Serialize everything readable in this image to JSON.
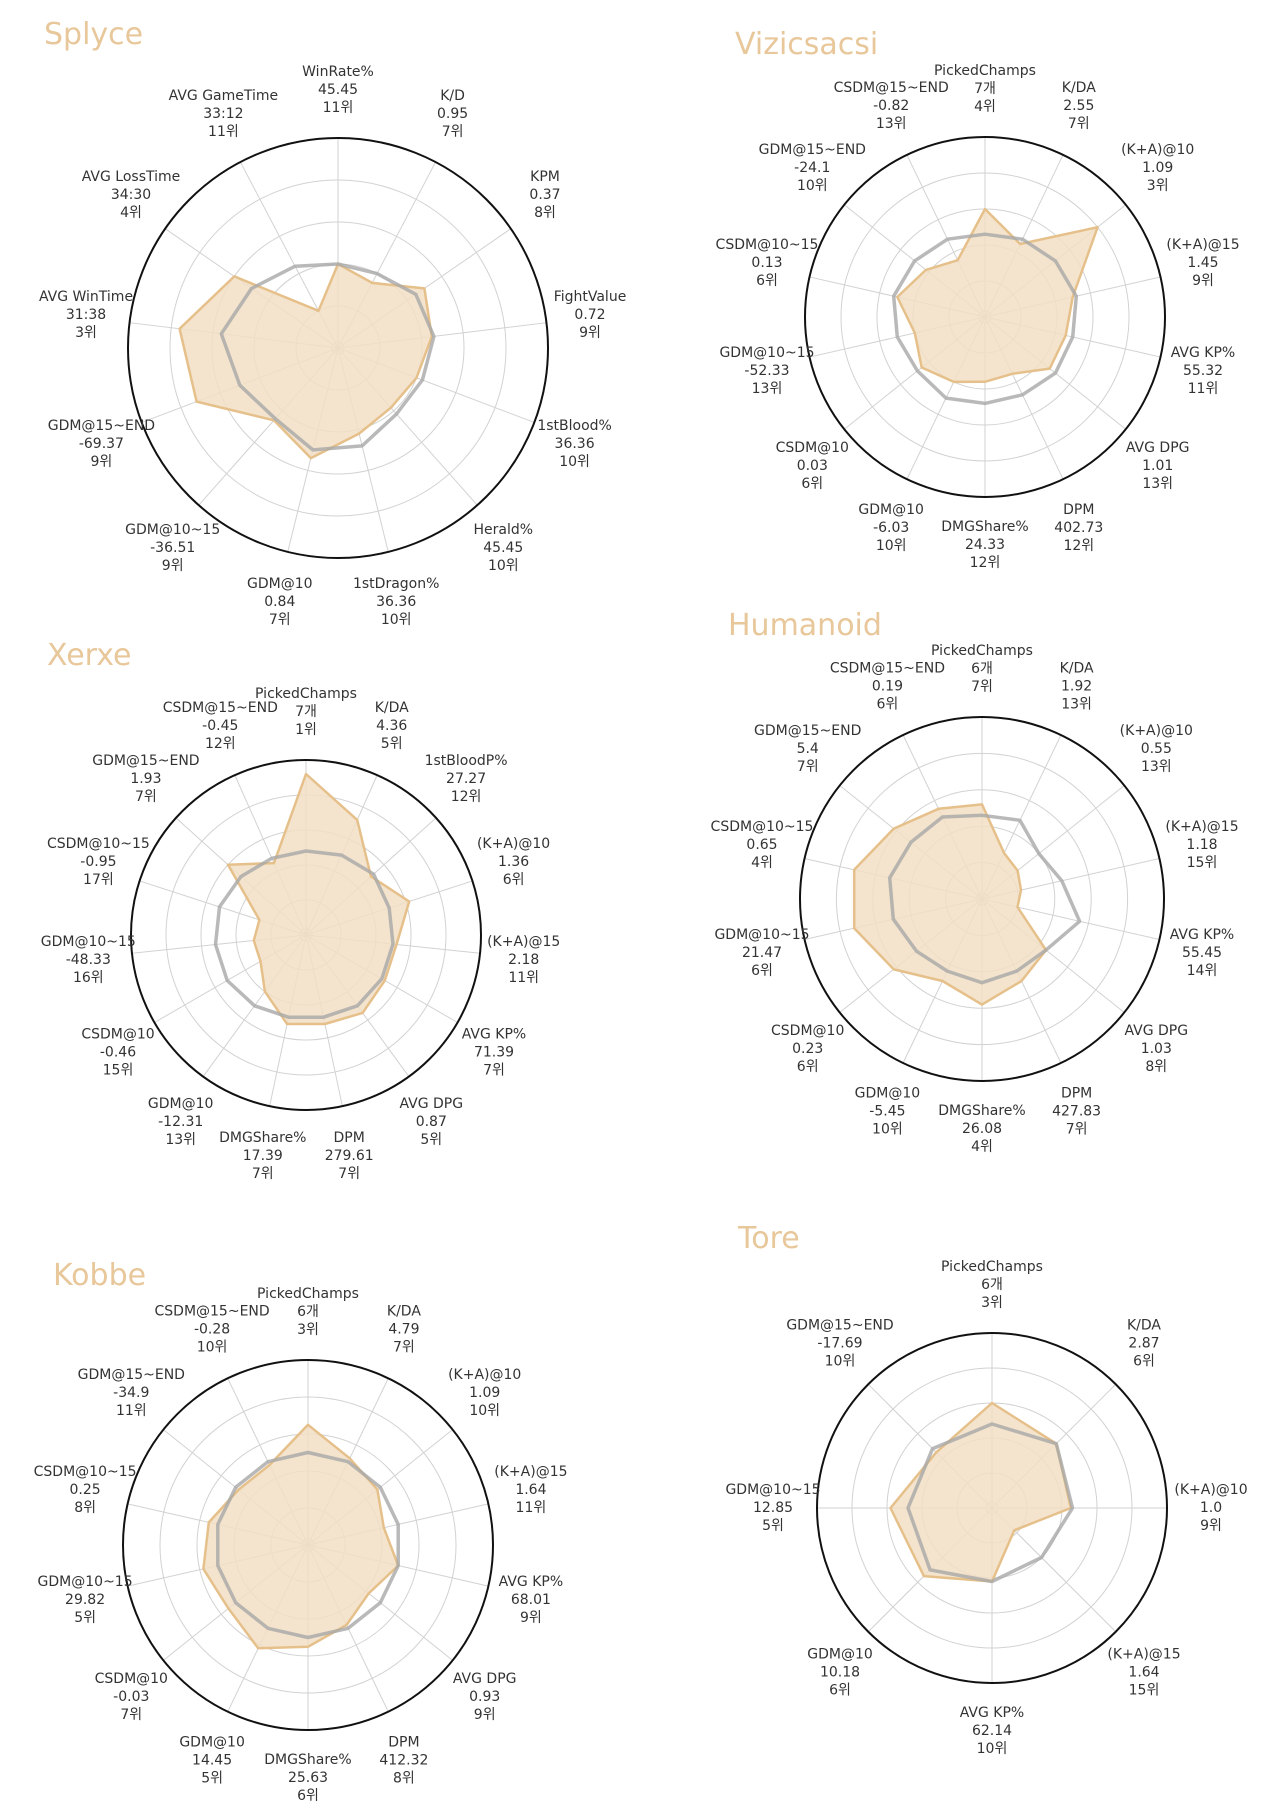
{
  "colors": {
    "player_fill": "#f2dfc4",
    "player_line": "#e6c08a",
    "avg_line": "#a8a8a8",
    "outer_ring": "#111111",
    "grid": "#d2d2d2",
    "title": "#e8c79a",
    "label": "#333333"
  },
  "chart_data": [
    {
      "type": "radar",
      "title": "Splyce",
      "axes": [
        {
          "name": "WinRate%",
          "value": "45.45",
          "rank": "11위"
        },
        {
          "name": "K/D",
          "value": "0.95",
          "rank": "7위"
        },
        {
          "name": "KPM",
          "value": "0.37",
          "rank": "8위"
        },
        {
          "name": "FightValue",
          "value": "0.72",
          "rank": "9위"
        },
        {
          "name": "1stBlood%",
          "value": "36.36",
          "rank": "10위"
        },
        {
          "name": "Herald%",
          "value": "45.45",
          "rank": "10위"
        },
        {
          "name": "1stDragon%",
          "value": "36.36",
          "rank": "10위"
        },
        {
          "name": "GDM@10",
          "value": "0.84",
          "rank": "7위"
        },
        {
          "name": "GDM@10~15",
          "value": "-36.51",
          "rank": "9위"
        },
        {
          "name": "GDM@15~END",
          "value": "-69.37",
          "rank": "9위"
        },
        {
          "name": "AVG WinTime",
          "value": "31:38",
          "rank": "3위"
        },
        {
          "name": "AVG LossTime",
          "value": "34:30",
          "rank": "4위"
        },
        {
          "name": "AVG GameTime",
          "value": "33:12",
          "rank": "11위"
        }
      ],
      "player_levels": [
        0.4,
        0.35,
        0.5,
        0.45,
        0.4,
        0.38,
        0.42,
        0.54,
        0.46,
        0.72,
        0.76,
        0.6,
        0.2
      ],
      "avg_levels": [
        0.4,
        0.4,
        0.45,
        0.46,
        0.43,
        0.42,
        0.48,
        0.5,
        0.45,
        0.5,
        0.56,
        0.5,
        0.44
      ]
    },
    {
      "type": "radar",
      "title": "Vizicsacsi",
      "axes": [
        {
          "name": "PickedChamps",
          "value": "7개",
          "rank": "4위"
        },
        {
          "name": "K/DA",
          "value": "2.55",
          "rank": "7위"
        },
        {
          "name": "(K+A)@10",
          "value": "1.09",
          "rank": "3위"
        },
        {
          "name": "(K+A)@15",
          "value": "1.45",
          "rank": "9위"
        },
        {
          "name": "AVG KP%",
          "value": "55.32",
          "rank": "11위"
        },
        {
          "name": "AVG DPG",
          "value": "1.01",
          "rank": "13위"
        },
        {
          "name": "DPM",
          "value": "402.73",
          "rank": "12위"
        },
        {
          "name": "DMGShare%",
          "value": "24.33",
          "rank": "12위"
        },
        {
          "name": "GDM@10",
          "value": "-6.03",
          "rank": "10위"
        },
        {
          "name": "CSDM@10",
          "value": "0.03",
          "rank": "6위"
        },
        {
          "name": "GDM@10~15",
          "value": "-52.33",
          "rank": "13위"
        },
        {
          "name": "CSDM@10~15",
          "value": "0.13",
          "rank": "6위"
        },
        {
          "name": "GDM@15~END",
          "value": "-24.1",
          "rank": "10위"
        },
        {
          "name": "CSDM@15~END",
          "value": "-0.82",
          "rank": "13위"
        }
      ],
      "player_levels": [
        0.6,
        0.45,
        0.8,
        0.5,
        0.46,
        0.46,
        0.35,
        0.36,
        0.4,
        0.45,
        0.4,
        0.5,
        0.42,
        0.35
      ],
      "avg_levels": [
        0.46,
        0.48,
        0.5,
        0.52,
        0.5,
        0.5,
        0.48,
        0.48,
        0.5,
        0.48,
        0.5,
        0.52,
        0.5,
        0.48
      ]
    },
    {
      "type": "radar",
      "title": "Xerxe",
      "axes": [
        {
          "name": "PickedChamps",
          "value": "7개",
          "rank": "1위"
        },
        {
          "name": "K/DA",
          "value": "4.36",
          "rank": "5위"
        },
        {
          "name": "1stBloodP%",
          "value": "27.27",
          "rank": "12위"
        },
        {
          "name": "(K+A)@10",
          "value": "1.36",
          "rank": "6위"
        },
        {
          "name": "(K+A)@15",
          "value": "2.18",
          "rank": "11위"
        },
        {
          "name": "AVG KP%",
          "value": "71.39",
          "rank": "7위"
        },
        {
          "name": "AVG DPG",
          "value": "0.87",
          "rank": "5위"
        },
        {
          "name": "DPM",
          "value": "279.61",
          "rank": "7위"
        },
        {
          "name": "DMGShare%",
          "value": "17.39",
          "rank": "7위"
        },
        {
          "name": "GDM@10",
          "value": "-12.31",
          "rank": "13위"
        },
        {
          "name": "CSDM@10",
          "value": "-0.46",
          "rank": "15위"
        },
        {
          "name": "GDM@10~15",
          "value": "-48.33",
          "rank": "16위"
        },
        {
          "name": "CSDM@10~15",
          "value": "-0.95",
          "rank": "17위"
        },
        {
          "name": "GDM@15~END",
          "value": "1.93",
          "rank": "7위"
        },
        {
          "name": "CSDM@15~END",
          "value": "-0.45",
          "rank": "12위"
        }
      ],
      "player_levels": [
        0.92,
        0.72,
        0.5,
        0.62,
        0.52,
        0.52,
        0.55,
        0.52,
        0.52,
        0.4,
        0.3,
        0.3,
        0.28,
        0.6,
        0.45
      ],
      "avg_levels": [
        0.48,
        0.5,
        0.52,
        0.5,
        0.5,
        0.5,
        0.5,
        0.48,
        0.48,
        0.5,
        0.52,
        0.52,
        0.52,
        0.5,
        0.48
      ]
    },
    {
      "type": "radar",
      "title": "Humanoid",
      "axes": [
        {
          "name": "PickedChamps",
          "value": "6개",
          "rank": "7위"
        },
        {
          "name": "K/DA",
          "value": "1.92",
          "rank": "13위"
        },
        {
          "name": "(K+A)@10",
          "value": "0.55",
          "rank": "13위"
        },
        {
          "name": "(K+A)@15",
          "value": "1.18",
          "rank": "15위"
        },
        {
          "name": "AVG KP%",
          "value": "55.45",
          "rank": "14위"
        },
        {
          "name": "AVG DPG",
          "value": "1.03",
          "rank": "8위"
        },
        {
          "name": "DPM",
          "value": "427.83",
          "rank": "7위"
        },
        {
          "name": "DMGShare%",
          "value": "26.08",
          "rank": "4위"
        },
        {
          "name": "GDM@10",
          "value": "-5.45",
          "rank": "10위"
        },
        {
          "name": "CSDM@10",
          "value": "0.23",
          "rank": "6위"
        },
        {
          "name": "GDM@10~15",
          "value": "21.47",
          "rank": "6위"
        },
        {
          "name": "CSDM@10~15",
          "value": "0.65",
          "rank": "4위"
        },
        {
          "name": "GDM@15~END",
          "value": "5.4",
          "rank": "7위"
        },
        {
          "name": "CSDM@15~END",
          "value": "0.19",
          "rank": "6위"
        }
      ],
      "player_levels": [
        0.52,
        0.28,
        0.25,
        0.22,
        0.2,
        0.45,
        0.5,
        0.58,
        0.5,
        0.62,
        0.72,
        0.72,
        0.62,
        0.55
      ],
      "avg_levels": [
        0.46,
        0.48,
        0.4,
        0.45,
        0.55,
        0.45,
        0.44,
        0.46,
        0.44,
        0.46,
        0.5,
        0.52,
        0.5,
        0.5
      ]
    },
    {
      "type": "radar",
      "title": "Kobbe",
      "axes": [
        {
          "name": "PickedChamps",
          "value": "6개",
          "rank": "3위"
        },
        {
          "name": "K/DA",
          "value": "4.79",
          "rank": "7위"
        },
        {
          "name": "(K+A)@10",
          "value": "1.09",
          "rank": "10위"
        },
        {
          "name": "(K+A)@15",
          "value": "1.64",
          "rank": "11위"
        },
        {
          "name": "AVG KP%",
          "value": "68.01",
          "rank": "9위"
        },
        {
          "name": "AVG DPG",
          "value": "0.93",
          "rank": "9위"
        },
        {
          "name": "DPM",
          "value": "412.32",
          "rank": "8위"
        },
        {
          "name": "DMGShare%",
          "value": "25.63",
          "rank": "6위"
        },
        {
          "name": "GDM@10",
          "value": "14.45",
          "rank": "5위"
        },
        {
          "name": "CSDM@10",
          "value": "-0.03",
          "rank": "7위"
        },
        {
          "name": "GDM@10~15",
          "value": "29.82",
          "rank": "5위"
        },
        {
          "name": "CSDM@10~15",
          "value": "0.25",
          "rank": "8위"
        },
        {
          "name": "GDM@15~END",
          "value": "-34.9",
          "rank": "11위"
        },
        {
          "name": "CSDM@15~END",
          "value": "-0.28",
          "rank": "10위"
        }
      ],
      "player_levels": [
        0.65,
        0.52,
        0.48,
        0.42,
        0.5,
        0.42,
        0.48,
        0.55,
        0.62,
        0.55,
        0.58,
        0.55,
        0.48,
        0.48
      ],
      "avg_levels": [
        0.5,
        0.5,
        0.5,
        0.5,
        0.5,
        0.5,
        0.5,
        0.5,
        0.5,
        0.5,
        0.5,
        0.5,
        0.5,
        0.5
      ]
    },
    {
      "type": "radar",
      "title": "Tore",
      "axes": [
        {
          "name": "PickedChamps",
          "value": "6개",
          "rank": "3위"
        },
        {
          "name": "K/DA",
          "value": "2.87",
          "rank": "6위"
        },
        {
          "name": "(K+A)@10",
          "value": "1.0",
          "rank": "9위"
        },
        {
          "name": "(K+A)@15",
          "value": "1.64",
          "rank": "15위"
        },
        {
          "name": "AVG KP%",
          "value": "62.14",
          "rank": "10위"
        },
        {
          "name": "GDM@10",
          "value": "10.18",
          "rank": "6위"
        },
        {
          "name": "GDM@10~15",
          "value": "12.85",
          "rank": "5위"
        },
        {
          "name": "GDM@15~END",
          "value": "-17.69",
          "rank": "10위"
        }
      ],
      "player_levels": [
        0.6,
        0.52,
        0.45,
        0.18,
        0.42,
        0.55,
        0.58,
        0.45
      ],
      "avg_levels": [
        0.48,
        0.52,
        0.46,
        0.4,
        0.42,
        0.5,
        0.48,
        0.48
      ]
    }
  ]
}
